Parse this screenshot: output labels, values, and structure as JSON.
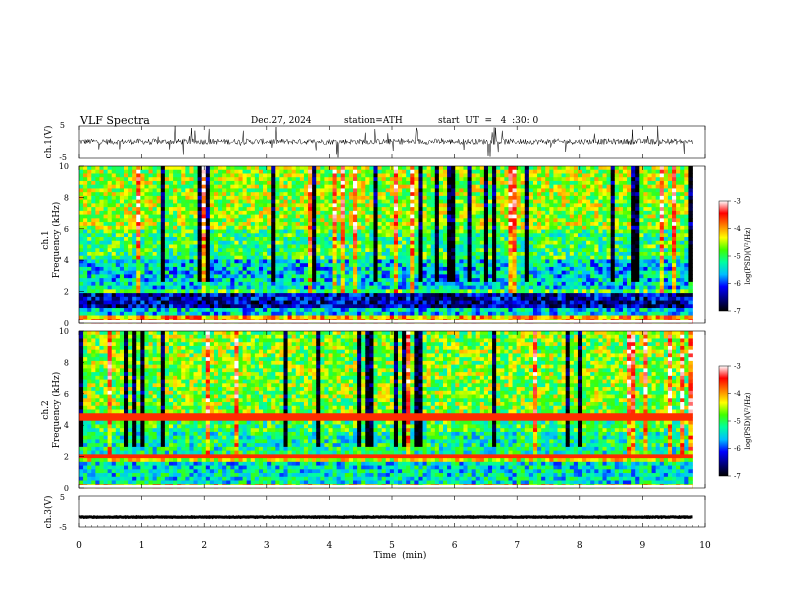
{
  "header": {
    "title": "VLF  Spectra",
    "date": "Dec.27, 2024",
    "station": "station=ATH",
    "start": "start  UT  =   4  :30: 0"
  },
  "chart_data": [
    {
      "type": "line",
      "name": "ch1-waveform",
      "ylabel": "ch.1(V)",
      "ylim": [
        -5,
        5
      ],
      "yticks": [
        "5",
        "-5"
      ],
      "xlim": [
        0,
        10
      ],
      "trace": {
        "mean": 0.1,
        "noise": 0.9,
        "spike_max": 5,
        "end_min": 9.8,
        "color": "#000000"
      }
    },
    {
      "type": "heatmap",
      "name": "ch1-spectrogram",
      "ylabel": "Frequency (kHz)",
      "channel_label": "ch.1",
      "ylim": [
        0,
        10
      ],
      "yticks": [
        "0",
        "2",
        "4",
        "6",
        "8",
        "10"
      ],
      "xlim": [
        0,
        9.8
      ],
      "bands_khz": [
        {
          "from": 0.0,
          "to": 0.4,
          "log_psd": -4.0
        },
        {
          "from": 0.4,
          "to": 1.0,
          "log_psd": -5.5
        },
        {
          "from": 1.0,
          "to": 1.8,
          "log_psd": -6.4
        },
        {
          "from": 1.8,
          "to": 2.2,
          "log_psd": -4.9
        },
        {
          "from": 2.2,
          "to": 4.0,
          "log_psd": -5.5
        },
        {
          "from": 4.0,
          "to": 6.0,
          "log_psd": -5.0
        },
        {
          "from": 6.0,
          "to": 10.0,
          "log_psd": -4.6
        }
      ],
      "colorbar": {
        "label": "log(PSD)(V²/Hz)",
        "ticks": [
          "-3",
          "-4",
          "-5",
          "-6",
          "-7"
        ],
        "range": [
          -7,
          -3
        ]
      }
    },
    {
      "type": "heatmap",
      "name": "ch2-spectrogram",
      "ylabel": "Frequency (kHz)",
      "channel_label": "ch.2",
      "ylim": [
        0,
        10
      ],
      "yticks": [
        "0",
        "2",
        "4",
        "6",
        "8",
        "10"
      ],
      "xlim": [
        0,
        9.8
      ],
      "bands_khz": [
        {
          "from": 0.0,
          "to": 0.3,
          "log_psd": -4.2
        },
        {
          "from": 0.3,
          "to": 1.6,
          "log_psd": -5.4
        },
        {
          "from": 1.6,
          "to": 2.2,
          "log_psd": -4.4
        },
        {
          "from": 2.2,
          "to": 3.6,
          "log_psd": -5.2
        },
        {
          "from": 3.6,
          "to": 4.6,
          "log_psd": -5.0
        },
        {
          "from": 4.6,
          "to": 10.0,
          "log_psd": -4.7
        }
      ],
      "lines_khz": [
        2.0,
        4.5
      ],
      "colorbar": {
        "label": "log(PSD)(V²/Hz)",
        "ticks": [
          "-3",
          "-4",
          "-5",
          "-6",
          "-7"
        ],
        "range": [
          -7,
          -3
        ]
      }
    },
    {
      "type": "line",
      "name": "ch3-waveform",
      "ylabel": "ch.3(V)",
      "ylim": [
        -5,
        5
      ],
      "yticks": [
        "5",
        "-5"
      ],
      "xlim": [
        0,
        10
      ],
      "trace": {
        "mean": -1.8,
        "noise": 0.1,
        "spike_max": 0,
        "end_min": 9.8,
        "color": "#000000"
      }
    }
  ],
  "xaxis": {
    "label": "Time  (min)",
    "ticks": [
      "0",
      "1",
      "2",
      "3",
      "4",
      "5",
      "6",
      "7",
      "8",
      "9",
      "10"
    ],
    "range": [
      0,
      10
    ]
  },
  "colormap": [
    "#000000",
    "#00007f",
    "#0000ff",
    "#00bfff",
    "#00ff9f",
    "#3fff00",
    "#ffff00",
    "#ff7f00",
    "#ff0000",
    "#ffffff"
  ]
}
